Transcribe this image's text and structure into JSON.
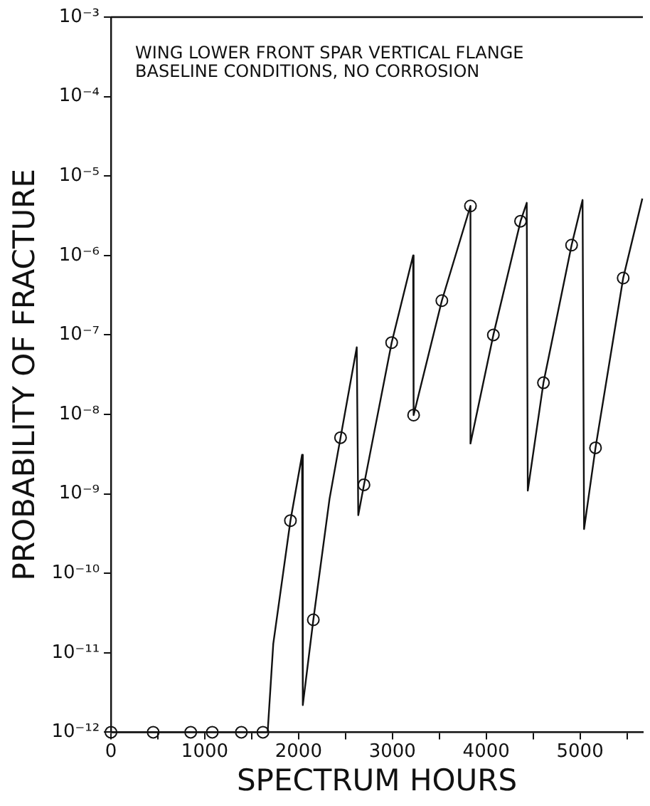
{
  "chart_data": {
    "type": "line",
    "xlabel": "SPECTRUM HOURS",
    "ylabel": "PROBABILITY OF FRACTURE",
    "annotations": [
      "WING LOWER FRONT SPAR VERTICAL FLANGE",
      "BASELINE CONDITIONS, NO CORROSION"
    ],
    "log": "y",
    "grid": false,
    "legend": false,
    "xlim": [
      0,
      5670
    ],
    "xticks": [
      0,
      {
        "value": 500,
        "label": null
      },
      1000,
      {
        "value": 1500,
        "label": null
      },
      2000,
      {
        "value": 2500,
        "label": null
      },
      3000,
      {
        "value": 3500,
        "label": null
      },
      4000,
      {
        "value": 4500,
        "label": null
      },
      5000,
      {
        "value": 5500,
        "label": null
      }
    ],
    "ylim": [
      1e-12,
      0.001
    ],
    "yticks": [
      {
        "value": 1e-12,
        "label": "10⁻¹²"
      },
      {
        "value": 1e-11,
        "label": "10⁻¹¹"
      },
      {
        "value": 1e-10,
        "label": "10⁻¹⁰"
      },
      {
        "value": 1e-09,
        "label": "10⁻⁹"
      },
      {
        "value": 1e-08,
        "label": "10⁻⁸"
      },
      {
        "value": 1e-07,
        "label": "10⁻⁷"
      },
      {
        "value": 1e-06,
        "label": "10⁻⁶"
      },
      {
        "value": 1e-05,
        "label": "10⁻⁵"
      },
      {
        "value": 0.0001,
        "label": "10⁻⁴"
      },
      {
        "value": 0.001,
        "label": "10⁻³"
      }
    ],
    "series": [
      {
        "marker": "none",
        "line_style": "solid",
        "color": "#111111",
        "x": [
          0,
          1670,
          1730,
          1913,
          2037,
          2045,
          2157,
          2330,
          2447,
          2620,
          2636,
          2697,
          2992,
          3221,
          3226,
          3527,
          3832,
          3832,
          4076,
          4366,
          4432,
          4443,
          4610,
          4910,
          5027,
          5043,
          5165,
          5460,
          5664
        ],
        "values": [
          1e-12,
          1e-12,
          1.3e-11,
          4.6e-10,
          3.1e-09,
          2.2e-12,
          2.6e-11,
          8.7e-10,
          5.1e-09,
          7e-08,
          5.4e-10,
          1.3e-09,
          8e-08,
          1e-06,
          9.8e-09,
          2.7e-07,
          4.2e-06,
          4.3e-09,
          1e-07,
          2.7e-06,
          4.6e-06,
          1.1e-09,
          2.5e-08,
          1.35e-06,
          5e-06,
          3.6e-10,
          3.8e-09,
          5.2e-07,
          5.2e-06
        ]
      },
      {
        "type": "scatter",
        "marker": "circle",
        "color": "#111111",
        "x": [
          0,
          450,
          850,
          1080,
          1390,
          1620,
          1913,
          2157,
          2447,
          2697,
          2992,
          3226,
          3527,
          3832,
          4076,
          4366,
          4610,
          4910,
          5165,
          5460
        ],
        "values": [
          1e-12,
          1e-12,
          1e-12,
          1e-12,
          1e-12,
          1e-12,
          4.6e-10,
          2.6e-11,
          5.1e-09,
          1.3e-09,
          8e-08,
          9.8e-09,
          2.7e-07,
          4.2e-06,
          1e-07,
          2.7e-06,
          2.5e-08,
          1.35e-06,
          3.8e-09,
          5.2e-07
        ]
      }
    ]
  }
}
